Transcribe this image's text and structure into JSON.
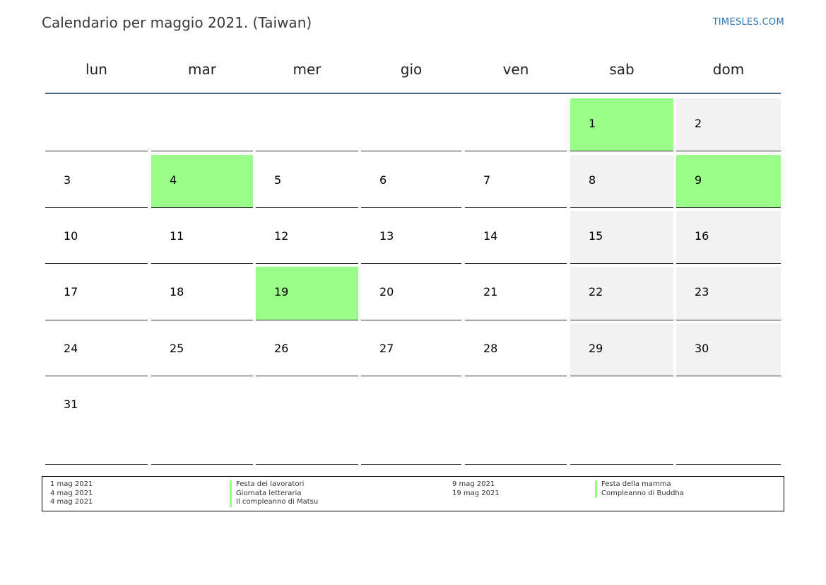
{
  "header": {
    "title": "Calendario per maggio 2021. (Taiwan)",
    "brand": "TIMESLES.COM"
  },
  "colors": {
    "holiday": "#99ff88",
    "weekend": "#f2f2f2",
    "header_rule": "#4a6a90",
    "brand": "#2b73b8"
  },
  "calendar": {
    "weekdays": [
      "lun",
      "mar",
      "mer",
      "gio",
      "ven",
      "sab",
      "dom"
    ],
    "weeks": [
      [
        "",
        "",
        "",
        "",
        "",
        "1",
        "2"
      ],
      [
        "3",
        "4",
        "5",
        "6",
        "7",
        "8",
        "9"
      ],
      [
        "10",
        "11",
        "12",
        "13",
        "14",
        "15",
        "16"
      ],
      [
        "17",
        "18",
        "19",
        "20",
        "21",
        "22",
        "23"
      ],
      [
        "24",
        "25",
        "26",
        "27",
        "28",
        "29",
        "30"
      ],
      [
        "31",
        "",
        "",
        "",
        "",
        "",
        ""
      ]
    ],
    "holidays": [
      "1",
      "4",
      "9",
      "19"
    ]
  },
  "legend": {
    "left": {
      "dates": [
        "1 mag 2021",
        "4 mag 2021",
        "4 mag 2021"
      ],
      "names": [
        "Festa dei lavoratori",
        "Giornata letteraria",
        "Il compleanno di Matsu"
      ]
    },
    "right": {
      "dates": [
        "9 mag 2021",
        "19 mag 2021"
      ],
      "names": [
        "Festa della mamma",
        "Compleanno di Buddha"
      ]
    }
  }
}
